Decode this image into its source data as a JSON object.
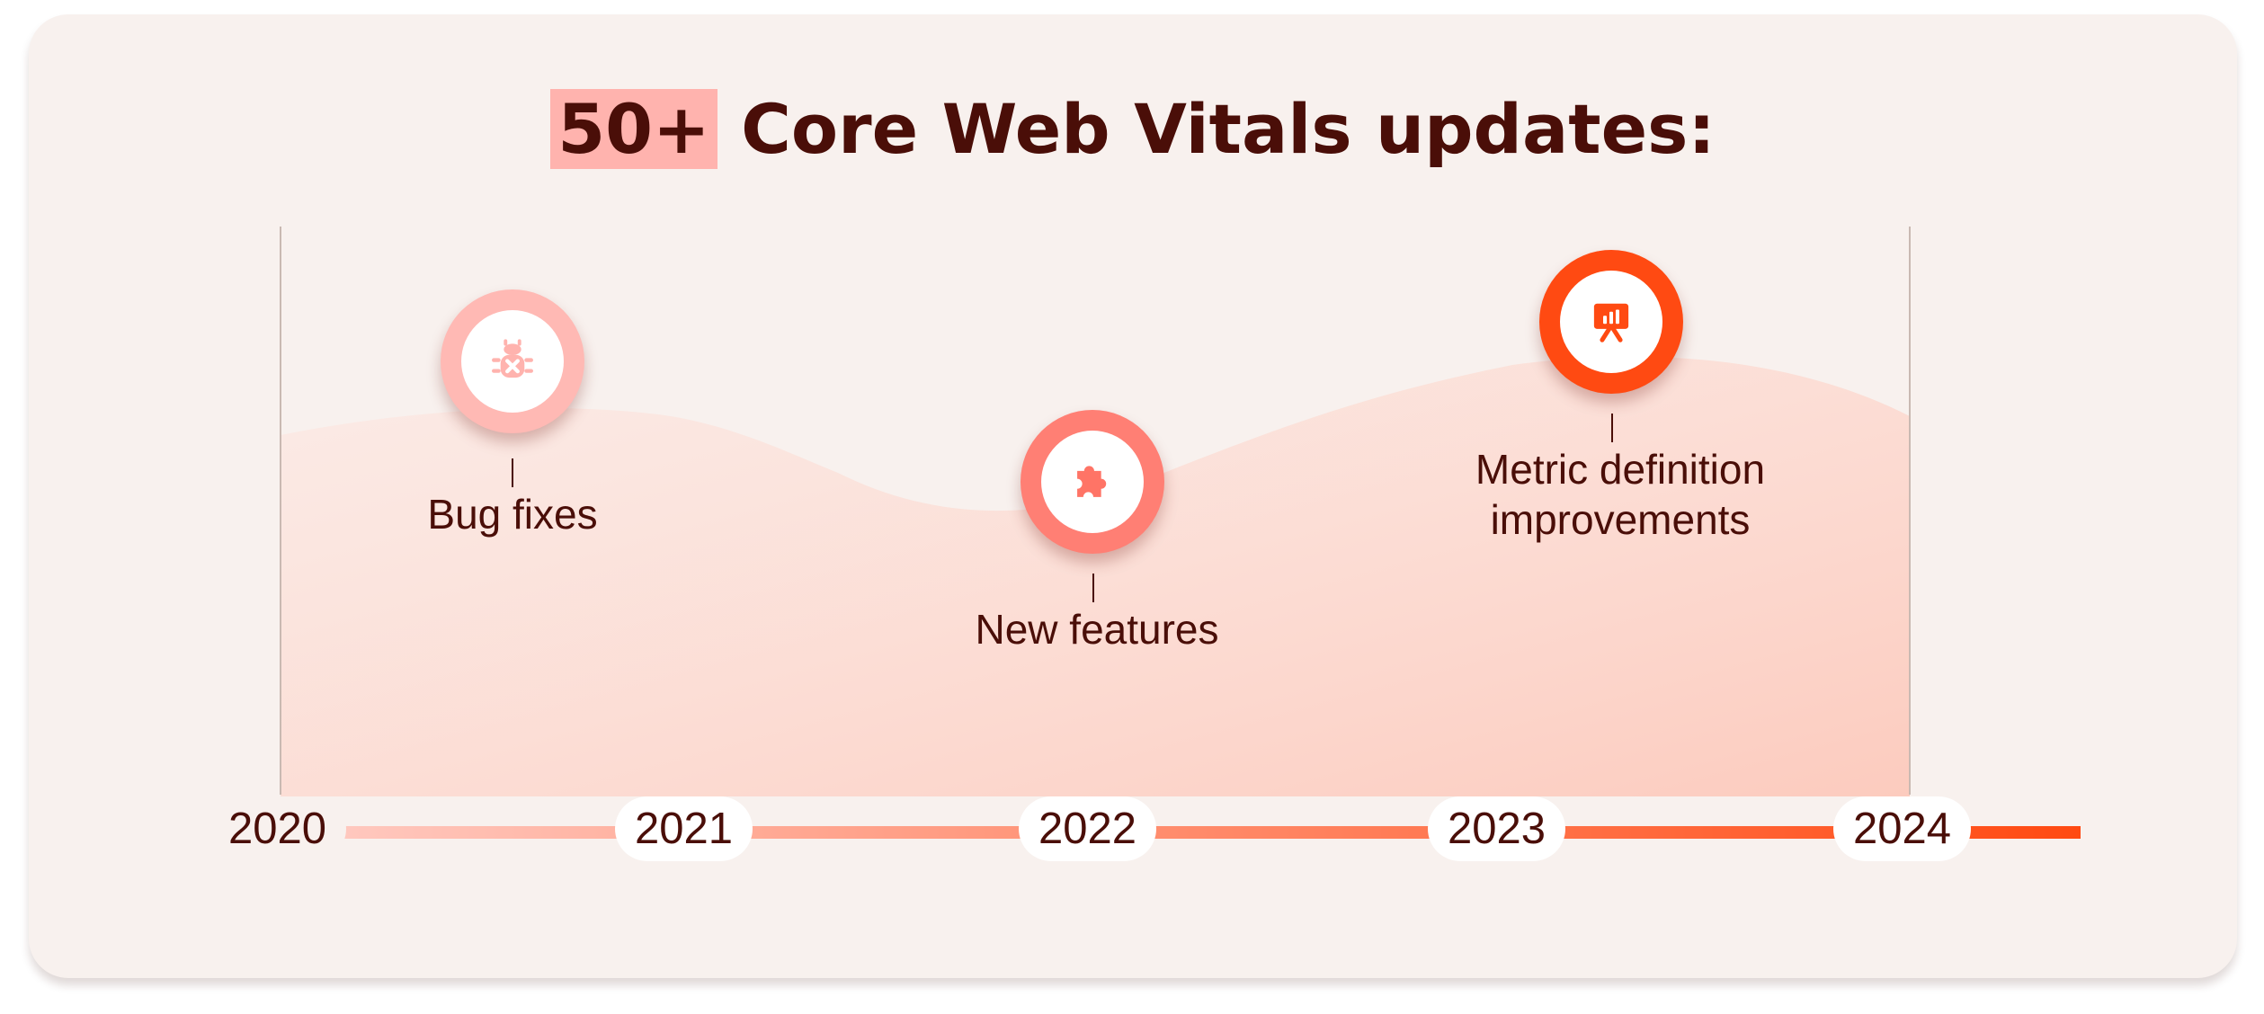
{
  "title": {
    "highlight": "50+",
    "rest": " Core Web Vitals updates:"
  },
  "timeline": {
    "years": [
      "2020",
      "2021",
      "2022",
      "2023",
      "2024"
    ]
  },
  "milestones": [
    {
      "label": "Bug fixes",
      "icon": "bug-icon",
      "ring_color": "#ffb9b4",
      "icon_color": "#ffb3ae"
    },
    {
      "label": "New features",
      "icon": "puzzle-icon",
      "ring_color": "#ff7f74",
      "icon_color": "#ff7466"
    },
    {
      "label_line1": "Metric definition",
      "label_line2": "improvements",
      "icon": "presentation-chart-icon",
      "ring_color": "#ff4a12",
      "icon_color": "#ff4a12"
    }
  ],
  "colors": {
    "card_bg": "#f8f1ee",
    "text": "#4a0e08",
    "highlight": "#ffb3ae",
    "gradient_start": "#ffc9c0",
    "gradient_end": "#ff4a12"
  }
}
